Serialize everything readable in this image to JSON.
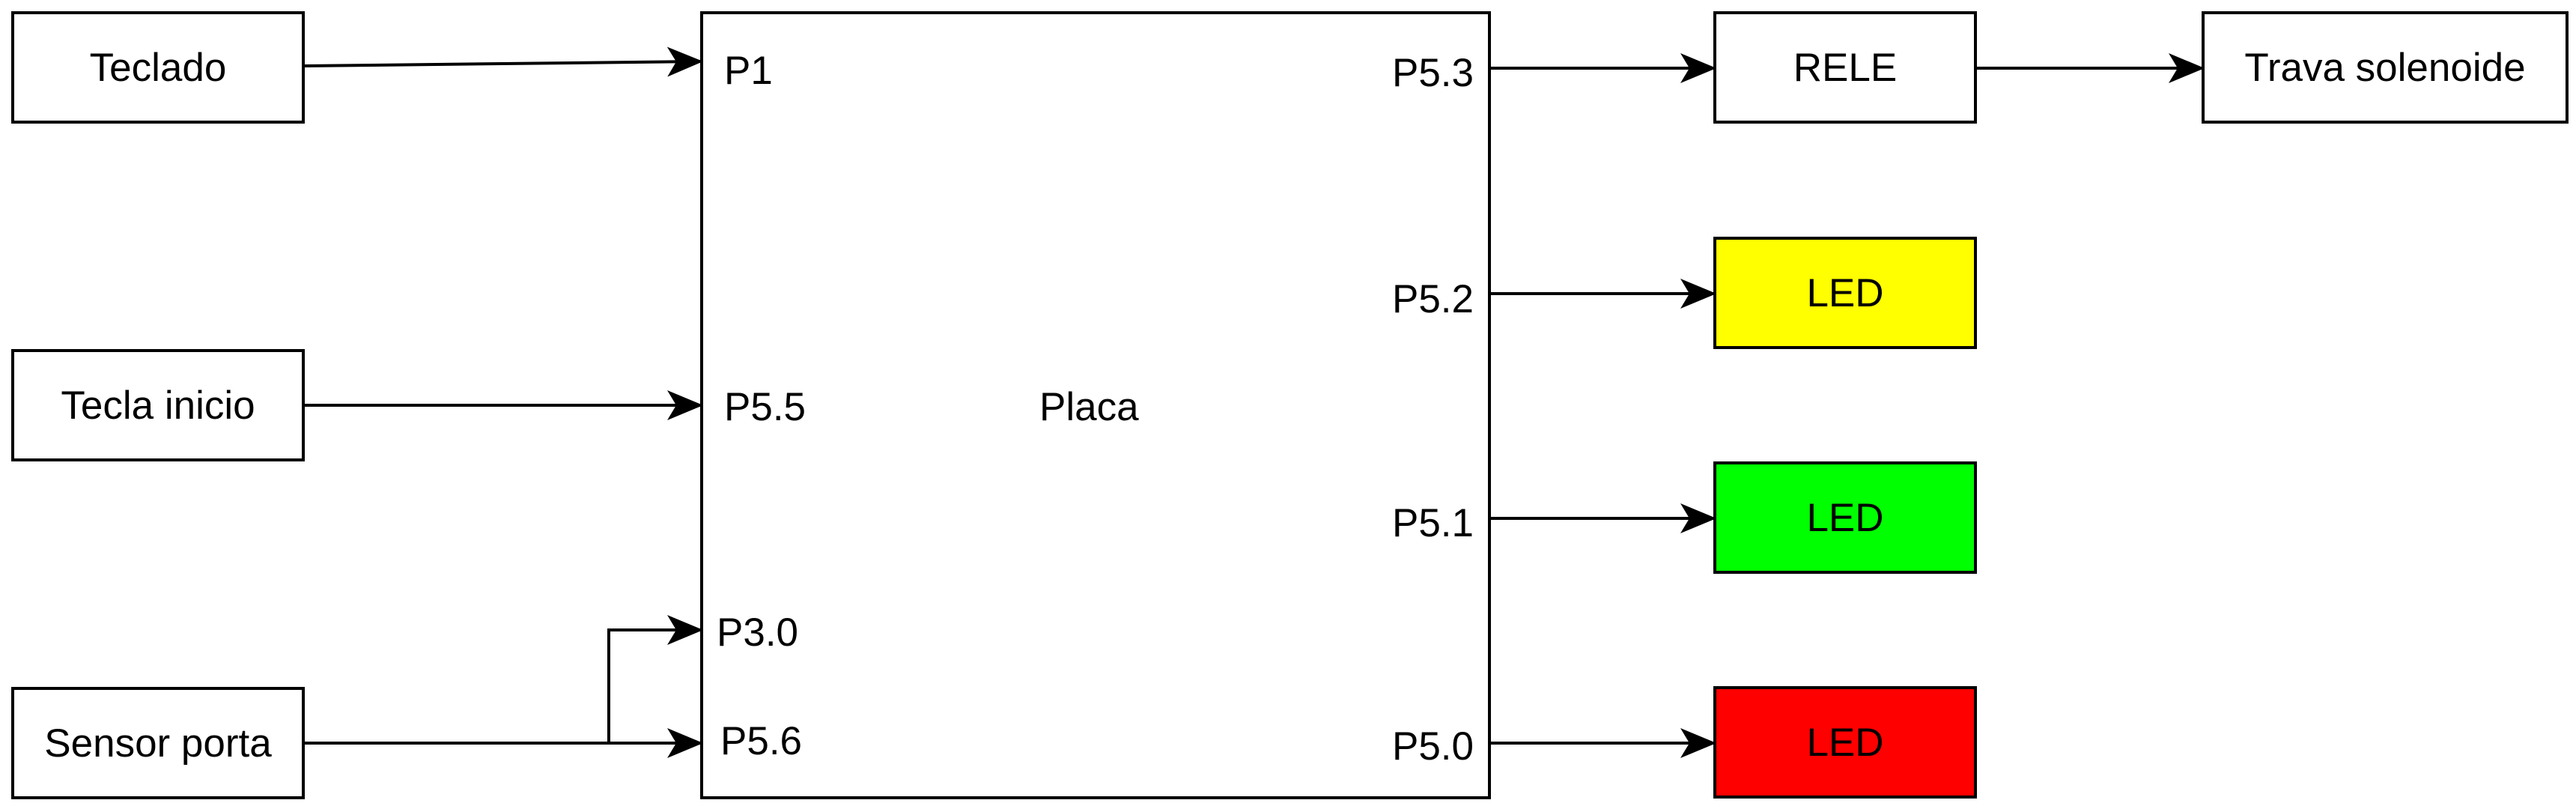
{
  "inputs": {
    "teclado": "Teclado",
    "tecla_inicio": "Tecla inicio",
    "sensor_porta": "Sensor porta"
  },
  "board": {
    "label": "Placa",
    "input_pins": {
      "p1": "P1",
      "p5_5": "P5.5",
      "p3_0": "P3.0",
      "p5_6": "P5.6"
    },
    "output_pins": {
      "p5_3": "P5.3",
      "p5_2": "P5.2",
      "p5_1": "P5.1",
      "p5_0": "P5.0"
    }
  },
  "outputs": {
    "rele": "RELE",
    "trava": "Trava solenoide",
    "led_yellow": {
      "label": "LED",
      "color": "#ffff00"
    },
    "led_green": {
      "label": "LED",
      "color": "#00ff00"
    },
    "led_red": {
      "label": "LED",
      "color": "#ff0000"
    }
  },
  "colors": {
    "stroke": "#000000",
    "background": "#ffffff"
  }
}
